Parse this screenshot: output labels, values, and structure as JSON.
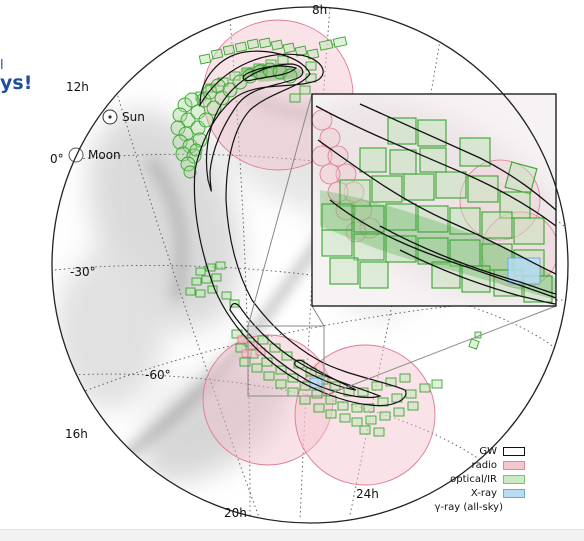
{
  "cropped_text": {
    "line1": "l",
    "line2": "ys!"
  },
  "coordinates": {
    "ra_8h": "8h",
    "ra_12h": "12h",
    "ra_16h": "16h",
    "ra_20h": "20h",
    "ra_24h": "24h",
    "dec_0": "0°",
    "dec_m30": "-30°",
    "dec_m60": "-60°"
  },
  "markers": {
    "sun": "Sun",
    "moon": "Moon"
  },
  "legend": {
    "items": [
      {
        "label": "GW",
        "fill": "#ffffff",
        "border": "#111111"
      },
      {
        "label": "radio",
        "fill": "#f6c6cf",
        "border": "#e48aa0"
      },
      {
        "label": "optical/IR",
        "fill": "#cdebc3",
        "border": "#7cc56f"
      },
      {
        "label": "X-ray",
        "fill": "#b9dcf5",
        "border": "#6aa9dd"
      },
      {
        "label": "γ-ray (all-sky)",
        "fill": "",
        "border": ""
      }
    ]
  },
  "colors": {
    "gw": "#111111",
    "radio": "#e07a90",
    "optical": "#3aa532",
    "xray": "#4e9fe0",
    "cropped_text": "#1f4e9c"
  }
}
